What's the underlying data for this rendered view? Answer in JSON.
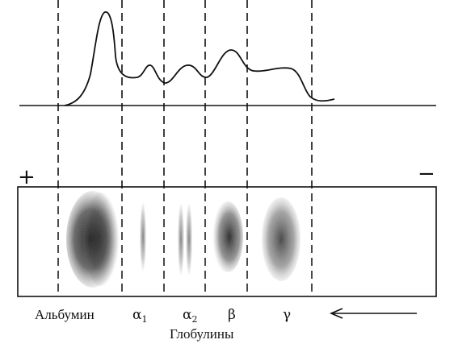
{
  "polarity": {
    "anode": "+",
    "cathode": "−"
  },
  "fractions": [
    {
      "id": "albumin",
      "label": "Альбумин"
    },
    {
      "id": "alpha1",
      "label": "α",
      "subscript": "1"
    },
    {
      "id": "alpha2",
      "label": "α",
      "subscript": "2"
    },
    {
      "id": "beta",
      "label": "β"
    },
    {
      "id": "gamma",
      "label": "γ"
    }
  ],
  "group_label": "Глобулины",
  "direction": "left",
  "colors": {
    "ink": "#111111",
    "background": "#ffffff"
  }
}
